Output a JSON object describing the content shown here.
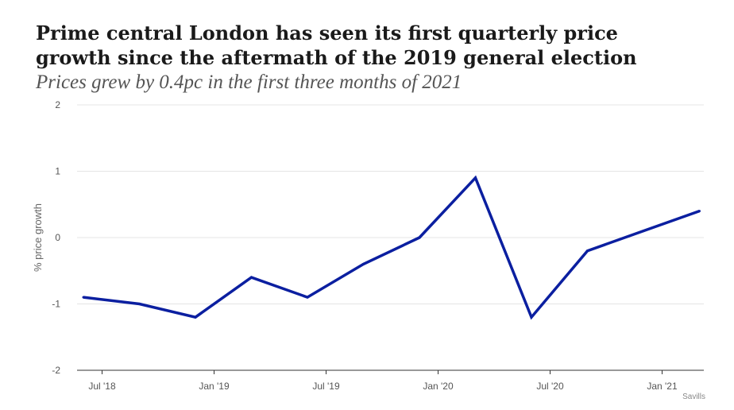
{
  "chart_data": {
    "type": "line",
    "title": "Prime central London has seen its first quarterly price growth since the aftermath of the 2019 general election",
    "subtitle": "Prices grew by 0.4pc in the first three months of 2021",
    "ylabel": "% price growth",
    "xlabel": "",
    "ylim": [
      -2,
      2
    ],
    "y_ticks": [
      2,
      1,
      0,
      -1,
      -2
    ],
    "y_tick_labels": [
      "2",
      "1",
      "0",
      "-1",
      "-2"
    ],
    "x_tick_labels": [
      "Jul '18",
      "Jan '19",
      "Jul '19",
      "Jan '20",
      "Jul '20",
      "Jan '21"
    ],
    "x": [
      "Jun 2018",
      "Sep 2018",
      "Dec 2018",
      "Mar 2019",
      "Jun 2019",
      "Sep 2019",
      "Dec 2019",
      "Mar 2020",
      "Jun 2020",
      "Sep 2020",
      "Dec 2020",
      "Mar 2021"
    ],
    "series": [
      {
        "values": [
          -0.9,
          -1.0,
          -1.2,
          -0.6,
          -0.9,
          -0.4,
          0.0,
          0.9,
          -1.2,
          -0.2,
          0.1,
          0.4
        ],
        "color": "#0b1fa0"
      }
    ],
    "grid": true,
    "source": "Savills"
  }
}
